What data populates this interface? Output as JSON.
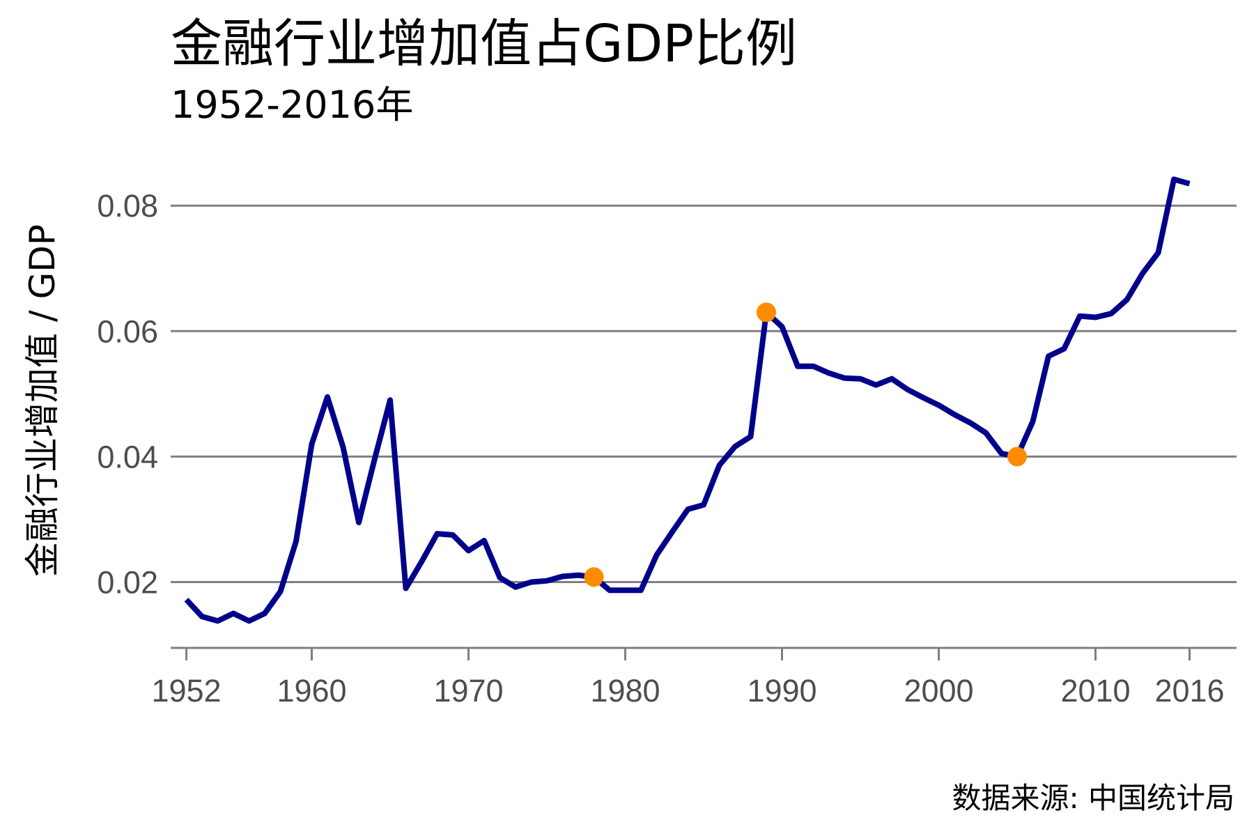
{
  "chart_data": {
    "type": "line",
    "title": "金融行业增加值占GDP比例",
    "subtitle": "1952-2016年",
    "ylabel": "金融行业增加值 / GDP",
    "xlabel": "",
    "caption": "数据来源: 中国统计局",
    "xlim": [
      1951,
      2019
    ],
    "ylim": [
      0.0095,
      0.0878
    ],
    "x_ticks": [
      1952,
      1960,
      1970,
      1980,
      1990,
      2000,
      2010,
      2016
    ],
    "x_tick_labels": [
      "1952",
      "1960",
      "1970",
      "1980",
      "1990",
      "2000",
      "2010",
      "2016"
    ],
    "y_ticks": [
      0.02,
      0.04,
      0.06,
      0.08
    ],
    "y_tick_labels": [
      "0.02",
      "0.04",
      "0.06",
      "0.08"
    ],
    "grid": "horizontal",
    "line_color": "#00008b",
    "highlight_color": "#ff8c00",
    "axis_color": "#7f7f7f",
    "series": [
      {
        "x": [
          1952,
          1953,
          1954,
          1955,
          1956,
          1957,
          1958,
          1959,
          1960,
          1961,
          1962,
          1963,
          1964,
          1965,
          1966,
          1967,
          1968,
          1969,
          1970,
          1971,
          1972,
          1973,
          1974,
          1975,
          1976,
          1977,
          1978,
          1979,
          1980,
          1981,
          1982,
          1983,
          1984,
          1985,
          1986,
          1987,
          1988,
          1989,
          1990,
          1991,
          1992,
          1993,
          1994,
          1995,
          1996,
          1997,
          1998,
          1999,
          2000,
          2001,
          2002,
          2003,
          2004,
          2005,
          2006,
          2007,
          2008,
          2009,
          2010,
          2011,
          2012,
          2013,
          2014,
          2015,
          2016
        ],
        "values": [
          0.0172,
          0.0145,
          0.0138,
          0.015,
          0.0138,
          0.015,
          0.0185,
          0.0265,
          0.042,
          0.0495,
          0.0415,
          0.0295,
          0.0395,
          0.049,
          0.019,
          0.0232,
          0.0277,
          0.0275,
          0.025,
          0.0266,
          0.0207,
          0.0192,
          0.02,
          0.0202,
          0.0209,
          0.0211,
          0.0208,
          0.0187,
          0.0187,
          0.0187,
          0.0243,
          0.028,
          0.0316,
          0.0323,
          0.0386,
          0.0416,
          0.0432,
          0.063,
          0.0607,
          0.0544,
          0.0544,
          0.0533,
          0.0525,
          0.0524,
          0.0514,
          0.0524,
          0.0507,
          0.0494,
          0.0482,
          0.0467,
          0.0454,
          0.0438,
          0.0405,
          0.04,
          0.0456,
          0.056,
          0.0572,
          0.0624,
          0.0622,
          0.0628,
          0.065,
          0.0692,
          0.0725,
          0.0842,
          0.0835
        ]
      }
    ],
    "highlights": [
      {
        "x": 1978,
        "y": 0.0208
      },
      {
        "x": 1989,
        "y": 0.063
      },
      {
        "x": 2005,
        "y": 0.04
      }
    ]
  }
}
